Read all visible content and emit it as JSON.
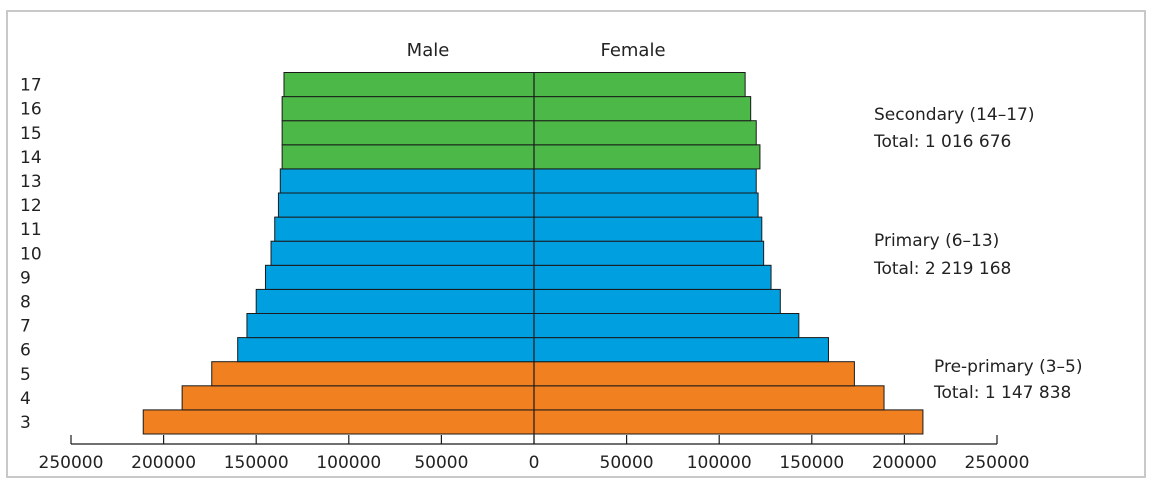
{
  "chart_data": {
    "type": "bar",
    "subtype": "population-pyramid",
    "headers": {
      "left": "Male",
      "right": "Female"
    },
    "ages": [
      "3",
      "4",
      "5",
      "6",
      "7",
      "8",
      "9",
      "10",
      "11",
      "12",
      "13",
      "14",
      "15",
      "16",
      "17"
    ],
    "series": [
      {
        "name": "Male",
        "side": "left",
        "values": [
          211000,
          190000,
          174000,
          160000,
          155000,
          150000,
          145000,
          142000,
          140000,
          138000,
          137000,
          136000,
          136000,
          136000,
          135000
        ]
      },
      {
        "name": "Female",
        "side": "right",
        "values": [
          210000,
          189000,
          173000,
          159000,
          143000,
          133000,
          128000,
          124000,
          123000,
          121000,
          120000,
          122000,
          120000,
          117000,
          114000
        ]
      }
    ],
    "groups": [
      {
        "label": "Pre-primary (3–5)",
        "total": "Total: 1 147 838",
        "ages": [
          "3",
          "4",
          "5"
        ],
        "color": "#f08020"
      },
      {
        "label": "Primary (6–13)",
        "total": "Total: 2 219 168",
        "ages": [
          "6",
          "7",
          "8",
          "9",
          "10",
          "11",
          "12",
          "13"
        ],
        "color": "#009fdf"
      },
      {
        "label": "Secondary (14–17)",
        "total": "Total: 1 016 676",
        "ages": [
          "14",
          "15",
          "16",
          "17"
        ],
        "color": "#4cb848"
      }
    ],
    "xlim": [
      -250000,
      250000
    ],
    "xticks": [
      -250000,
      -200000,
      -150000,
      -100000,
      -50000,
      0,
      50000,
      100000,
      150000,
      200000,
      250000
    ],
    "xtick_labels": [
      "250000",
      "200000",
      "150000",
      "100000",
      "50000",
      "0",
      "50000",
      "100000",
      "150000",
      "200000",
      "250000"
    ],
    "grid": false
  }
}
